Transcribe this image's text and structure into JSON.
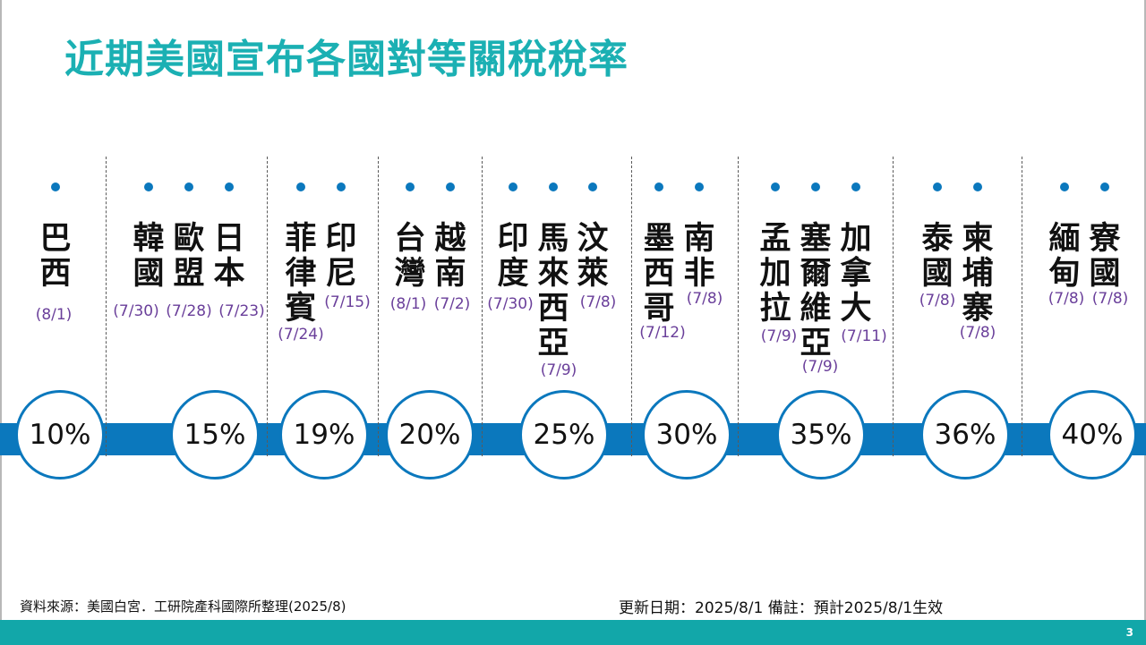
{
  "title": "近期美國宣布各國對等關稅稅率",
  "groups": [
    {
      "rate": "10%",
      "countries": [
        {
          "name": "巴西",
          "date": "(8/1)"
        }
      ]
    },
    {
      "rate": "15%",
      "countries": [
        {
          "name": "韓國",
          "date": "(7/30)"
        },
        {
          "name": "歐盟",
          "date": "(7/28)"
        },
        {
          "name": "日本",
          "date": "(7/23)"
        }
      ]
    },
    {
      "rate": "19%",
      "countries": [
        {
          "name": "菲律賓",
          "date": "(7/24)"
        },
        {
          "name": "印尼",
          "date": "(7/15)"
        }
      ]
    },
    {
      "rate": "20%",
      "countries": [
        {
          "name": "台灣",
          "date": "(8/1)"
        },
        {
          "name": "越南",
          "date": "(7/2)"
        }
      ]
    },
    {
      "rate": "25%",
      "countries": [
        {
          "name": "印度",
          "date": "(7/30)"
        },
        {
          "name": "馬來西亞",
          "date": "(7/9)"
        },
        {
          "name": "汶萊",
          "date": "(7/8)"
        }
      ]
    },
    {
      "rate": "30%",
      "countries": [
        {
          "name": "墨西哥",
          "date": "(7/12)"
        },
        {
          "name": "南非",
          "date": "(7/8)"
        }
      ]
    },
    {
      "rate": "35%",
      "countries": [
        {
          "name": "孟加拉",
          "date": "(7/9)"
        },
        {
          "name": "塞爾維亞",
          "date": "(7/9)"
        },
        {
          "name": "加拿大",
          "date": "(7/11)"
        }
      ]
    },
    {
      "rate": "36%",
      "countries": [
        {
          "name": "泰國",
          "date": "(7/8)"
        },
        {
          "name": "柬埔寨",
          "date": "(7/8)"
        }
      ]
    },
    {
      "rate": "40%",
      "countries": [
        {
          "name": "緬甸",
          "date": "(7/8)"
        },
        {
          "name": "寮國",
          "date": "(7/8)"
        }
      ]
    }
  ],
  "footer": {
    "source": "資料來源：美國白宮．工研院產科國際所整理(2025/8)",
    "updated": "更新日期：2025/8/1   備註：預計2025/8/1生效",
    "page_number": "3"
  },
  "colors": {
    "title": "#1bb0b3",
    "band": "#0b78bd",
    "date": "#6a3f9a",
    "footer_bar": "#12a7a9"
  }
}
